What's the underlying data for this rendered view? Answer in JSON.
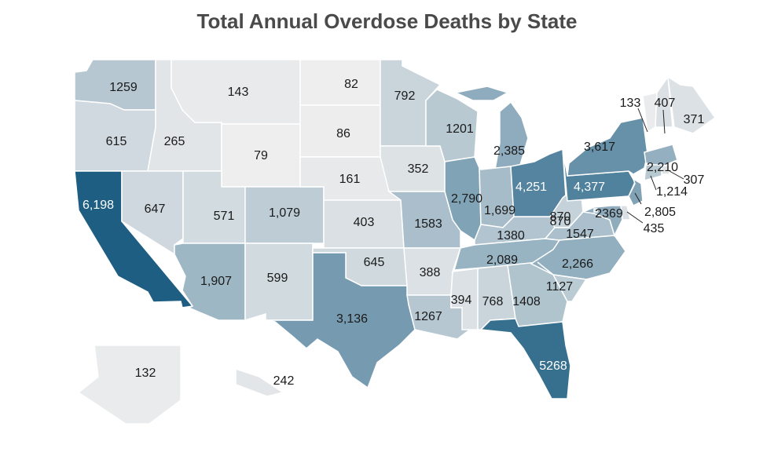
{
  "title": "Total Annual Overdose Deaths by State",
  "colors": {
    "high": "#1d5e82",
    "none": "#eeeeee"
  },
  "chart_data": {
    "type": "choropleth",
    "title": "Total Annual Overdose Deaths by State",
    "states": [
      {
        "code": "WA",
        "label": "1259",
        "value": 1259
      },
      {
        "code": "OR",
        "label": "615",
        "value": 615
      },
      {
        "code": "CA",
        "label": "6,198",
        "value": 6198
      },
      {
        "code": "ID",
        "label": "265",
        "value": 265
      },
      {
        "code": "NV",
        "label": "647",
        "value": 647
      },
      {
        "code": "MT",
        "label": "143",
        "value": 143
      },
      {
        "code": "WY",
        "label": "79",
        "value": 79
      },
      {
        "code": "UT",
        "label": "571",
        "value": 571
      },
      {
        "code": "AZ",
        "label": "1,907",
        "value": 1907
      },
      {
        "code": "CO",
        "label": "1,079",
        "value": 1079
      },
      {
        "code": "NM",
        "label": "599",
        "value": 599
      },
      {
        "code": "ND",
        "label": "82",
        "value": 82
      },
      {
        "code": "SD",
        "label": "86",
        "value": 86
      },
      {
        "code": "NE",
        "label": "161",
        "value": 161
      },
      {
        "code": "KS",
        "label": "403",
        "value": 403
      },
      {
        "code": "OK",
        "label": "645",
        "value": 645
      },
      {
        "code": "TX",
        "label": "3,136",
        "value": 3136
      },
      {
        "code": "MN",
        "label": "792",
        "value": 792
      },
      {
        "code": "IA",
        "label": "352",
        "value": 352
      },
      {
        "code": "MO",
        "label": "1583",
        "value": 1583
      },
      {
        "code": "AR",
        "label": "388",
        "value": 388
      },
      {
        "code": "LA",
        "label": "1267",
        "value": 1267
      },
      {
        "code": "WI",
        "label": "1201",
        "value": 1201
      },
      {
        "code": "IL",
        "label": "2,790",
        "value": 2790
      },
      {
        "code": "MS",
        "label": "394",
        "value": 394
      },
      {
        "code": "MI",
        "label": "2,385",
        "value": 2385
      },
      {
        "code": "IN",
        "label": "1,699",
        "value": 1699
      },
      {
        "code": "KY",
        "label": "1380",
        "value": 1380
      },
      {
        "code": "TN",
        "label": "2,089",
        "value": 2089
      },
      {
        "code": "AL",
        "label": "768",
        "value": 768
      },
      {
        "code": "GA",
        "label": "1408",
        "value": 1408
      },
      {
        "code": "FL",
        "label": "5268",
        "value": 5268
      },
      {
        "code": "OH",
        "label": "4,251",
        "value": 4251
      },
      {
        "code": "WV",
        "label": "870",
        "value": 870
      },
      {
        "code": "VA",
        "label": "1547",
        "value": 1547
      },
      {
        "code": "NC",
        "label": "2,266",
        "value": 2266
      },
      {
        "code": "SC",
        "label": "1127",
        "value": 1127
      },
      {
        "code": "PA",
        "label": "4,377",
        "value": 4377
      },
      {
        "code": "NY",
        "label": "3,617",
        "value": 3617
      },
      {
        "code": "VT",
        "label": "133",
        "value": 133
      },
      {
        "code": "NH",
        "label": "407",
        "value": 407
      },
      {
        "code": "ME",
        "label": "371",
        "value": 371
      },
      {
        "code": "MA",
        "label": "2,210",
        "value": 2210
      },
      {
        "code": "RI",
        "label": "307",
        "value": 307
      },
      {
        "code": "CT",
        "label": "1,214",
        "value": 1214
      },
      {
        "code": "NJ",
        "label": "2,805",
        "value": 2805
      },
      {
        "code": "DE",
        "label": "435",
        "value": 435
      },
      {
        "code": "MD",
        "label": "2369",
        "value": 2369
      },
      {
        "code": "DC",
        "label": "870",
        "value": 870
      },
      {
        "code": "AK",
        "label": "132",
        "value": 132
      },
      {
        "code": "HI",
        "label": "242",
        "value": 242
      }
    ]
  }
}
